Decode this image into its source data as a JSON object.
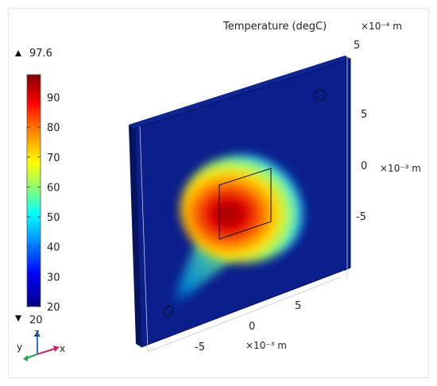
{
  "chart_data": {
    "type": "surface-3d",
    "title": "Temperature (degC)",
    "colorbar": {
      "max_label": "97.6",
      "min_label": "20",
      "min": 20,
      "max": 97.6,
      "ticks": [
        {
          "value": 20,
          "label": "20"
        },
        {
          "value": 30,
          "label": "30"
        },
        {
          "value": 40,
          "label": "40"
        },
        {
          "value": 50,
          "label": "50"
        },
        {
          "value": 60,
          "label": "60"
        },
        {
          "value": 70,
          "label": "70"
        },
        {
          "value": 80,
          "label": "80"
        },
        {
          "value": 90,
          "label": "90"
        }
      ]
    },
    "axes": {
      "z_scale": "×10⁻⁴ m",
      "z_ticks": [
        "5",
        "5",
        "0",
        "-5"
      ],
      "y_scale": "×10⁻³ m",
      "x_scale": "×10⁻³ m",
      "x_ticks": [
        "-5",
        "0",
        "5"
      ]
    },
    "triad": {
      "x": "x",
      "y": "y",
      "z": "z"
    },
    "colors": {
      "background": "#ffffff",
      "plate_face": "#0a1e8c",
      "plate_edge": "#06125c",
      "hot": "#8b0000"
    }
  }
}
